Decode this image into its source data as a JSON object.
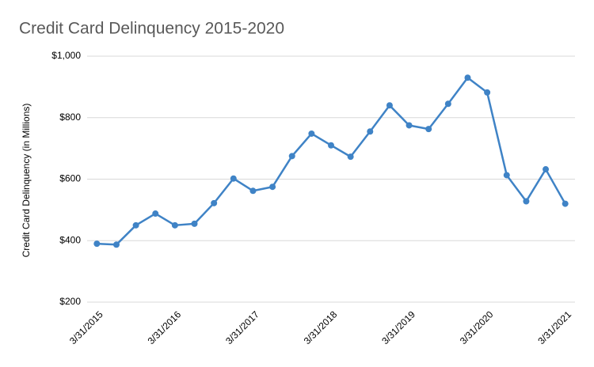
{
  "chart_data": {
    "type": "line",
    "title": "Credit Card Delinquency 2015-2020",
    "y_label": "Credit Card Delinquency (in Millions)",
    "categories": [
      "3/31/2015",
      null,
      null,
      null,
      "3/31/2016",
      null,
      null,
      null,
      "3/31/2017",
      null,
      null,
      null,
      "3/31/2018",
      null,
      null,
      null,
      "3/31/2019",
      null,
      null,
      null,
      "3/31/2020",
      null,
      null,
      null,
      "3/31/2021"
    ],
    "values": [
      390,
      387,
      450,
      488,
      450,
      455,
      522,
      602,
      562,
      575,
      675,
      748,
      710,
      673,
      755,
      840,
      775,
      763,
      845,
      930,
      882,
      613,
      528,
      632,
      520
    ],
    "color": "#3f83c6",
    "ylim": [
      200,
      1000
    ],
    "yticks": [
      {
        "value": 200,
        "label": "$200"
      },
      {
        "value": 400,
        "label": "$400"
      },
      {
        "value": 600,
        "label": "$600"
      },
      {
        "value": 800,
        "label": "$800"
      },
      {
        "value": 1000,
        "label": "$1,000"
      }
    ],
    "grid": true
  }
}
